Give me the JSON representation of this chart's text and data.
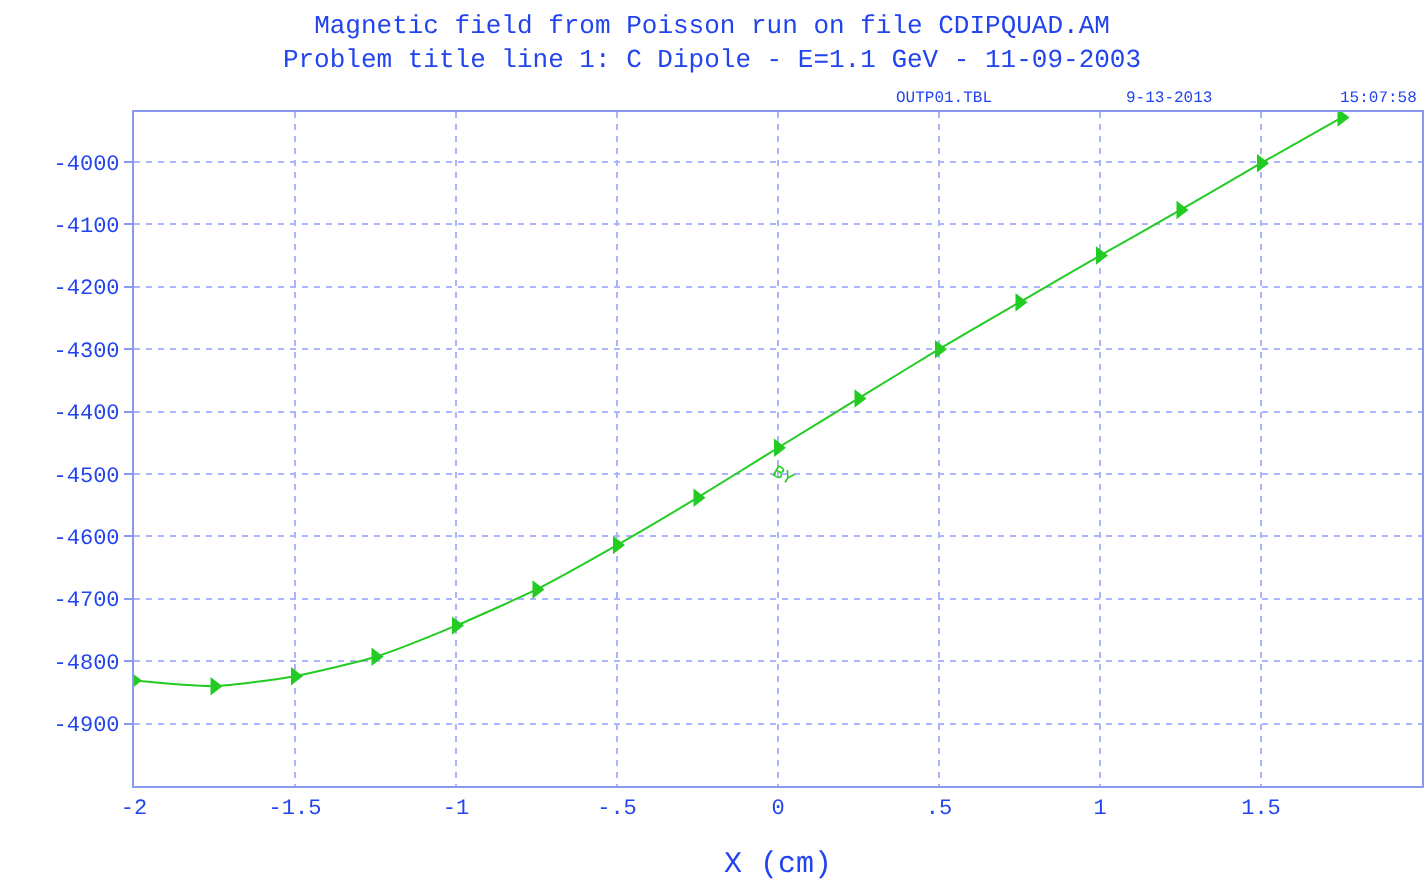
{
  "chart_data": {
    "type": "line",
    "title": "Magnetic field from Poisson run on file CDIPQUAD.AM",
    "subtitle": "Problem title line 1: C Dipole - E=1.1 GeV - 11-09-2003",
    "xlabel": "X (cm)",
    "annotations": [
      "OUTP01.TBL",
      "9-13-2013",
      "15:07:58"
    ],
    "x": [
      -2,
      -1.75,
      -1.5,
      -1.25,
      -1,
      -0.75,
      -0.5,
      -0.25,
      0,
      0.25,
      0.5,
      0.75,
      1,
      1.25,
      1.5,
      1.75
    ],
    "series": [
      {
        "name": "BY",
        "color": "#22cc22",
        "values": [
          -4831,
          -4840,
          -4824,
          -4793,
          -4743,
          -4685,
          -4614,
          -4538,
          -4458,
          -4379,
          -4300,
          -4225,
          -4150,
          -4077,
          -4002,
          -3929
        ]
      }
    ],
    "xlim": [
      -2,
      2
    ],
    "ylim": [
      -5000,
      -3920
    ],
    "xticks": [
      -2,
      -1.5,
      -1,
      {
        "value": -0.5,
        "label": "-.5"
      },
      0,
      {
        "value": 0.5,
        "label": ".5"
      },
      1,
      1.5
    ],
    "yticks": [
      -4900,
      -4800,
      -4700,
      -4600,
      -4500,
      -4400,
      -4300,
      -4200,
      -4100,
      -4000
    ],
    "grid": true,
    "legend": false,
    "marker": "triangle",
    "line_style": "solid"
  }
}
